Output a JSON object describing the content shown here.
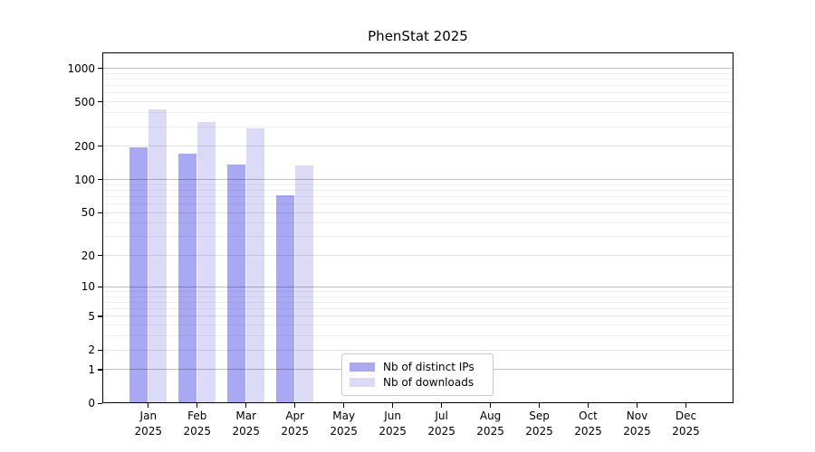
{
  "title": "PhenStat 2025",
  "chart_data": {
    "type": "bar",
    "title": "PhenStat 2025",
    "xlabel": "",
    "ylabel": "",
    "y_scale": "log(x+1)",
    "ylim": [
      0,
      1390
    ],
    "grid": true,
    "legend_position": "bottom-center",
    "categories": [
      "Jan",
      "Feb",
      "Mar",
      "Apr",
      "May",
      "Jun",
      "Jul",
      "Aug",
      "Sep",
      "Oct",
      "Nov",
      "Dec"
    ],
    "x_tick_year_line": "2025",
    "y_ticks": [
      0,
      1,
      2,
      5,
      10,
      20,
      50,
      100,
      200,
      500,
      1000
    ],
    "y_minor_gridlines": [
      3,
      4,
      6,
      7,
      8,
      9,
      30,
      40,
      60,
      70,
      80,
      90,
      300,
      400,
      600,
      700,
      800,
      900
    ],
    "series": [
      {
        "name": "Nb of distinct IPs",
        "color": "#a8a8f4",
        "values": [
          196,
          172,
          138,
          72,
          null,
          null,
          null,
          null,
          null,
          null,
          null,
          null
        ]
      },
      {
        "name": "Nb of downloads",
        "color": "#dbdbf8",
        "values": [
          432,
          333,
          289,
          133,
          null,
          null,
          null,
          null,
          null,
          null,
          null,
          null
        ]
      }
    ]
  },
  "colors": {
    "grid_decade": "#bfbfbf",
    "grid_major": "#e5e5e8",
    "grid_minor": "#f0f0f0"
  }
}
